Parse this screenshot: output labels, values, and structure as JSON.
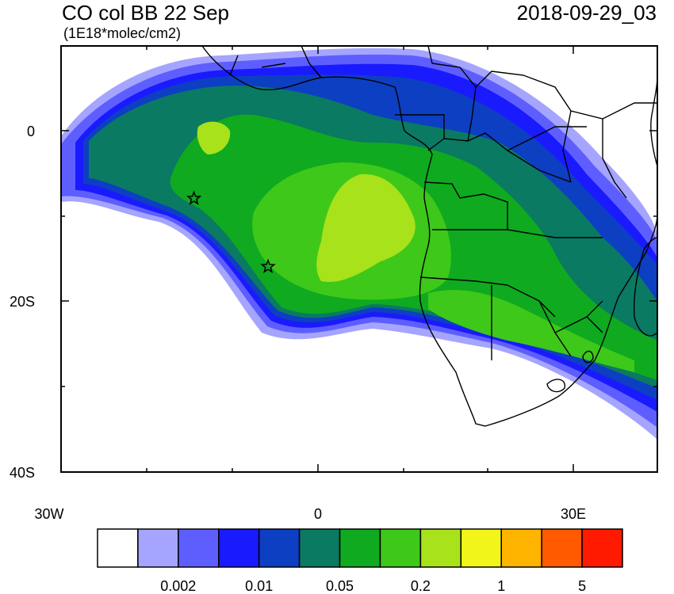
{
  "header": {
    "title": "CO col BB 22 Sep",
    "units": "(1E18*molec/cm2)",
    "datetime": "2018-09-29_03"
  },
  "map": {
    "lon_range": [
      -30,
      40
    ],
    "lat_range": [
      -40,
      10
    ],
    "lon_ticks": [
      {
        "value": -30,
        "label": "30W"
      },
      {
        "value": 0,
        "label": "0"
      },
      {
        "value": 30,
        "label": "30E"
      }
    ],
    "lat_ticks": [
      {
        "value": 0,
        "label": "0"
      },
      {
        "value": -20,
        "label": "20S"
      },
      {
        "value": -40,
        "label": "40S"
      }
    ],
    "station_markers": [
      {
        "lon": -14.4,
        "lat": -7.9
      },
      {
        "lon": -5.7,
        "lat": -15.9
      }
    ]
  },
  "colorbar": {
    "colors": [
      "#ffffff",
      "#a5a5ff",
      "#5e5eff",
      "#1a1aff",
      "#0d3fc2",
      "#0a7a62",
      "#0faa1f",
      "#3ec81a",
      "#a8e21a",
      "#f2f51a",
      "#ffb400",
      "#ff5a00",
      "#ff1a00"
    ],
    "labels": [
      "0.002",
      "0.01",
      "0.05",
      "0.2",
      "1",
      "5"
    ]
  },
  "chart_data": {
    "type": "heatmap",
    "title": "CO col BB 22 Sep",
    "subtitle": "(1E18*molec/cm2)",
    "xlabel": "",
    "ylabel": "",
    "xlim": [
      -30,
      40
    ],
    "ylim": [
      -40,
      10
    ],
    "x_tick_labels": [
      "30W",
      "0",
      "30E"
    ],
    "y_tick_labels": [
      "0",
      "20S",
      "40S"
    ],
    "color_levels": [
      "0.002",
      "0.01",
      "0.05",
      "0.2",
      "1",
      "5"
    ]
  }
}
